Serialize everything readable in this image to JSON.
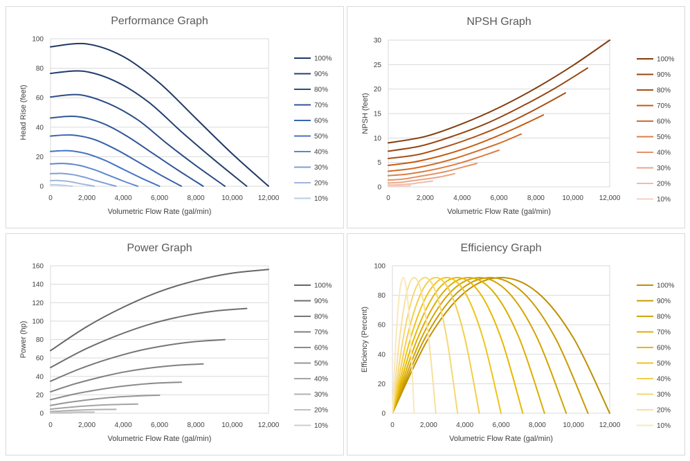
{
  "percent_labels": [
    "100%",
    "90%",
    "80%",
    "70%",
    "60%",
    "50%",
    "40%",
    "30%",
    "20%",
    "10%"
  ],
  "chart_data": [
    {
      "type": "line",
      "title": "Performance Graph",
      "xlabel": "Volumetric Flow Rate (gal/min)",
      "ylabel": "Head Rise (feet)",
      "xlim": [
        0,
        12000
      ],
      "ylim": [
        0,
        100
      ],
      "xticks": [
        "0",
        "2,000",
        "4,000",
        "6,000",
        "8,000",
        "10,000",
        "12,000"
      ],
      "yticks": [
        "0",
        "20",
        "40",
        "60",
        "80",
        "100"
      ],
      "legend": "right",
      "colors": [
        "#1f3864",
        "#23406f",
        "#2a4c86",
        "#2f5597",
        "#3764ac",
        "#4472c4",
        "#5e86cd",
        "#7f9ed6",
        "#9fb5df",
        "#bccbe8"
      ],
      "series": [
        {
          "name": "100%",
          "x": [
            0,
            2000,
            4000,
            6000,
            8000,
            10000,
            12000
          ],
          "y": [
            94.5,
            96.5,
            88,
            70,
            46,
            22,
            0
          ]
        },
        {
          "name": "90%",
          "x": [
            0,
            1800,
            3600,
            5400,
            7200,
            9000,
            10800
          ],
          "y": [
            76.5,
            78,
            71,
            57,
            37,
            18,
            0
          ]
        },
        {
          "name": "80%",
          "x": [
            0,
            1600,
            3200,
            4800,
            6400,
            8000,
            9600
          ],
          "y": [
            60.5,
            62,
            56,
            45,
            29,
            14,
            0
          ]
        },
        {
          "name": "70%",
          "x": [
            0,
            1400,
            2800,
            4200,
            5600,
            7000,
            8400
          ],
          "y": [
            46.3,
            47.3,
            43,
            34,
            22.5,
            11,
            0
          ]
        },
        {
          "name": "60%",
          "x": [
            0,
            1200,
            2400,
            3600,
            4800,
            6000,
            7200
          ],
          "y": [
            34,
            34.7,
            31.7,
            25,
            16.6,
            8,
            0
          ]
        },
        {
          "name": "50%",
          "x": [
            0,
            1000,
            2000,
            3000,
            4000,
            5000,
            6000
          ],
          "y": [
            23.6,
            24.1,
            22,
            17.5,
            11.5,
            5.5,
            0
          ]
        },
        {
          "name": "40%",
          "x": [
            0,
            800,
            1600,
            2400,
            3200,
            4000,
            4800
          ],
          "y": [
            15.1,
            15.4,
            14.1,
            11.2,
            7.4,
            3.5,
            0
          ]
        },
        {
          "name": "30%",
          "x": [
            0,
            600,
            1200,
            1800,
            2400,
            3000,
            3600
          ],
          "y": [
            8.5,
            8.7,
            7.9,
            6.3,
            4.1,
            2,
            0
          ]
        },
        {
          "name": "20%",
          "x": [
            0,
            400,
            800,
            1200,
            1600,
            2000,
            2400
          ],
          "y": [
            3.8,
            3.9,
            3.5,
            2.8,
            1.8,
            0.9,
            0
          ]
        },
        {
          "name": "10%",
          "x": [
            0,
            200,
            400,
            600,
            800,
            1000,
            1200
          ],
          "y": [
            0.9,
            1,
            0.9,
            0.7,
            0.5,
            0.2,
            0
          ]
        }
      ]
    },
    {
      "type": "line",
      "title": "NPSH Graph",
      "xlabel": "Volumetric Flow Rate (gal/min)",
      "ylabel": "NPSH (feet)",
      "xlim": [
        0,
        12000
      ],
      "ylim": [
        0,
        30
      ],
      "xticks": [
        "0",
        "2,000",
        "4,000",
        "6,000",
        "8,000",
        "10,000",
        "12,000"
      ],
      "yticks": [
        "0",
        "5",
        "10",
        "15",
        "20",
        "25",
        "30"
      ],
      "legend": "right",
      "colors": [
        "#843c0c",
        "#974510",
        "#a94f14",
        "#c55a11",
        "#d16b2a",
        "#dc7d44",
        "#e39266",
        "#eaa788",
        "#f0bca8",
        "#f4cfc2"
      ],
      "series": [
        {
          "name": "100%",
          "x": [
            0,
            2000,
            4000,
            6000,
            8000,
            10000,
            12000
          ],
          "y": [
            9,
            10.3,
            12.9,
            16.2,
            20.2,
            24.8,
            30
          ]
        },
        {
          "name": "90%",
          "x": [
            0,
            1800,
            3600,
            5400,
            7200,
            9000,
            10800
          ],
          "y": [
            7.3,
            8.4,
            10.5,
            13.1,
            16.4,
            20.1,
            24.3
          ]
        },
        {
          "name": "80%",
          "x": [
            0,
            1600,
            3200,
            4800,
            6400,
            8000,
            9600
          ],
          "y": [
            5.8,
            6.6,
            8.3,
            10.4,
            12.9,
            15.9,
            19.2
          ]
        },
        {
          "name": "70%",
          "x": [
            0,
            1400,
            2800,
            4200,
            5600,
            7000,
            8400
          ],
          "y": [
            4.4,
            5.1,
            6.3,
            7.9,
            9.9,
            12.2,
            14.7
          ]
        },
        {
          "name": "60%",
          "x": [
            0,
            1200,
            2400,
            3600,
            4800,
            6000,
            7200
          ],
          "y": [
            3.2,
            3.7,
            4.6,
            5.8,
            7.3,
            8.9,
            10.8
          ]
        },
        {
          "name": "50%",
          "x": [
            0,
            1000,
            2000,
            3000,
            4000,
            5000,
            6000
          ],
          "y": [
            2.3,
            2.6,
            3.2,
            4,
            5,
            6.2,
            7.5
          ]
        },
        {
          "name": "40%",
          "x": [
            0,
            800,
            1600,
            2400,
            3200,
            4000,
            4800
          ],
          "y": [
            1.4,
            1.6,
            2.1,
            2.6,
            3.2,
            4,
            4.8
          ]
        },
        {
          "name": "30%",
          "x": [
            0,
            600,
            1200,
            1800,
            2400,
            3000,
            3600
          ],
          "y": [
            0.8,
            0.9,
            1.2,
            1.5,
            1.8,
            2.2,
            2.7
          ]
        },
        {
          "name": "20%",
          "x": [
            0,
            400,
            800,
            1200,
            1600,
            2000,
            2400
          ],
          "y": [
            0.4,
            0.4,
            0.5,
            0.6,
            0.8,
            1,
            1.2
          ]
        },
        {
          "name": "10%",
          "x": [
            0,
            200,
            400,
            600,
            800,
            1000,
            1200
          ],
          "y": [
            0.1,
            0.1,
            0.1,
            0.2,
            0.2,
            0.2,
            0.3
          ]
        }
      ]
    },
    {
      "type": "line",
      "title": "Power Graph",
      "xlabel": "Volumetric Flow Rate (gal/min)",
      "ylabel": "Power (hp)",
      "xlim": [
        0,
        12000
      ],
      "ylim": [
        0,
        160
      ],
      "xticks": [
        "0",
        "2,000",
        "4,000",
        "6,000",
        "8,000",
        "10,000",
        "12,000"
      ],
      "yticks": [
        "0",
        "20",
        "40",
        "60",
        "80",
        "100",
        "120",
        "140",
        "160"
      ],
      "legend": "right",
      "colors": [
        "#666666",
        "#6e6e6e",
        "#767676",
        "#7f7f7f",
        "#8a8a8a",
        "#969696",
        "#a3a3a3",
        "#b0b0b0",
        "#bfbfbf",
        "#cccccc"
      ],
      "series": [
        {
          "name": "100%",
          "x": [
            0,
            2000,
            4000,
            6000,
            8000,
            10000,
            12000
          ],
          "y": [
            68,
            94,
            115,
            132,
            144,
            152,
            156
          ]
        },
        {
          "name": "90%",
          "x": [
            0,
            1800,
            3600,
            5400,
            7200,
            9000,
            10800
          ],
          "y": [
            49.6,
            68.5,
            83.8,
            96.2,
            105,
            110.8,
            113.7
          ]
        },
        {
          "name": "80%",
          "x": [
            0,
            1600,
            3200,
            4800,
            6400,
            8000,
            9600
          ],
          "y": [
            34.8,
            48.1,
            58.9,
            67.6,
            73.7,
            77.8,
            79.9
          ]
        },
        {
          "name": "70%",
          "x": [
            0,
            1400,
            2800,
            4200,
            5600,
            7000,
            8400
          ],
          "y": [
            23.3,
            32.2,
            39.4,
            45.3,
            49.4,
            52.1,
            53.5
          ]
        },
        {
          "name": "60%",
          "x": [
            0,
            1200,
            2400,
            3600,
            4800,
            6000,
            7200
          ],
          "y": [
            14.7,
            20.3,
            24.8,
            28.5,
            31.1,
            32.8,
            33.7
          ]
        },
        {
          "name": "50%",
          "x": [
            0,
            1000,
            2000,
            3000,
            4000,
            5000,
            6000
          ],
          "y": [
            8.5,
            11.8,
            14.4,
            16.5,
            18,
            19,
            19.5
          ]
        },
        {
          "name": "40%",
          "x": [
            0,
            800,
            1600,
            2400,
            3200,
            4000,
            4800
          ],
          "y": [
            4.4,
            6,
            7.4,
            8.4,
            9.2,
            9.7,
            10
          ]
        },
        {
          "name": "30%",
          "x": [
            0,
            600,
            1200,
            1800,
            2400,
            3000,
            3600
          ],
          "y": [
            1.8,
            2.5,
            3.1,
            3.6,
            3.9,
            4.1,
            4.2
          ]
        },
        {
          "name": "20%",
          "x": [
            0,
            400,
            800,
            1200,
            1600,
            2000,
            2400
          ],
          "y": [
            0.5,
            0.8,
            0.9,
            1.1,
            1.2,
            1.2,
            1.2
          ]
        },
        {
          "name": "10%",
          "x": [
            0,
            200,
            400,
            600,
            800,
            1000,
            1200
          ],
          "y": [
            0.1,
            0.1,
            0.1,
            0.1,
            0.1,
            0.2,
            0.2
          ]
        }
      ]
    },
    {
      "type": "line",
      "title": "Efficiency Graph",
      "xlabel": "Volumetric Flow Rate (gal/min)",
      "ylabel": "Efficiency (Percent)",
      "xlim": [
        0,
        12000
      ],
      "ylim": [
        0,
        100
      ],
      "xticks": [
        "0",
        "2,000",
        "4,000",
        "6,000",
        "8,000",
        "10,000",
        "12,000"
      ],
      "yticks": [
        "0",
        "20",
        "40",
        "60",
        "80",
        "100"
      ],
      "legend": "right",
      "colors": [
        "#bf9000",
        "#c89a00",
        "#d2a400",
        "#dcae00",
        "#e6b800",
        "#f0c419",
        "#f4ce4a",
        "#f6d775",
        "#f8e09c",
        "#fae8bb"
      ],
      "series": [
        {
          "name": "100%",
          "x": [
            0,
            2000,
            4000,
            6000,
            8000,
            10000,
            12000
          ],
          "y": [
            0,
            51,
            82,
            92,
            82,
            51,
            0
          ]
        },
        {
          "name": "90%",
          "x": [
            0,
            1800,
            3600,
            5400,
            7200,
            9000,
            10800
          ],
          "y": [
            0,
            51,
            82,
            92,
            82,
            51,
            0
          ]
        },
        {
          "name": "80%",
          "x": [
            0,
            1600,
            3200,
            4800,
            6400,
            8000,
            9600
          ],
          "y": [
            0,
            51,
            82,
            92,
            82,
            51,
            0
          ]
        },
        {
          "name": "70%",
          "x": [
            0,
            1400,
            2800,
            4200,
            5600,
            7000,
            8400
          ],
          "y": [
            0,
            51,
            82,
            92,
            82,
            51,
            0
          ]
        },
        {
          "name": "60%",
          "x": [
            0,
            1200,
            2400,
            3600,
            4800,
            6000,
            7200
          ],
          "y": [
            0,
            51,
            82,
            92,
            82,
            51,
            0
          ]
        },
        {
          "name": "50%",
          "x": [
            0,
            1000,
            2000,
            3000,
            4000,
            5000,
            6000
          ],
          "y": [
            0,
            51,
            82,
            92,
            82,
            51,
            0
          ]
        },
        {
          "name": "40%",
          "x": [
            0,
            800,
            1600,
            2400,
            3200,
            4000,
            4800
          ],
          "y": [
            0,
            51,
            82,
            92,
            82,
            51,
            0
          ]
        },
        {
          "name": "30%",
          "x": [
            0,
            600,
            1200,
            1800,
            2400,
            3000,
            3600
          ],
          "y": [
            0,
            51,
            82,
            92,
            82,
            51,
            0
          ]
        },
        {
          "name": "20%",
          "x": [
            0,
            400,
            800,
            1200,
            1600,
            2000,
            2400
          ],
          "y": [
            0,
            51,
            82,
            92,
            82,
            51,
            0
          ]
        },
        {
          "name": "10%",
          "x": [
            0,
            200,
            400,
            600,
            800,
            1000,
            1200
          ],
          "y": [
            0,
            51,
            82,
            92,
            82,
            51,
            0
          ]
        }
      ]
    }
  ]
}
